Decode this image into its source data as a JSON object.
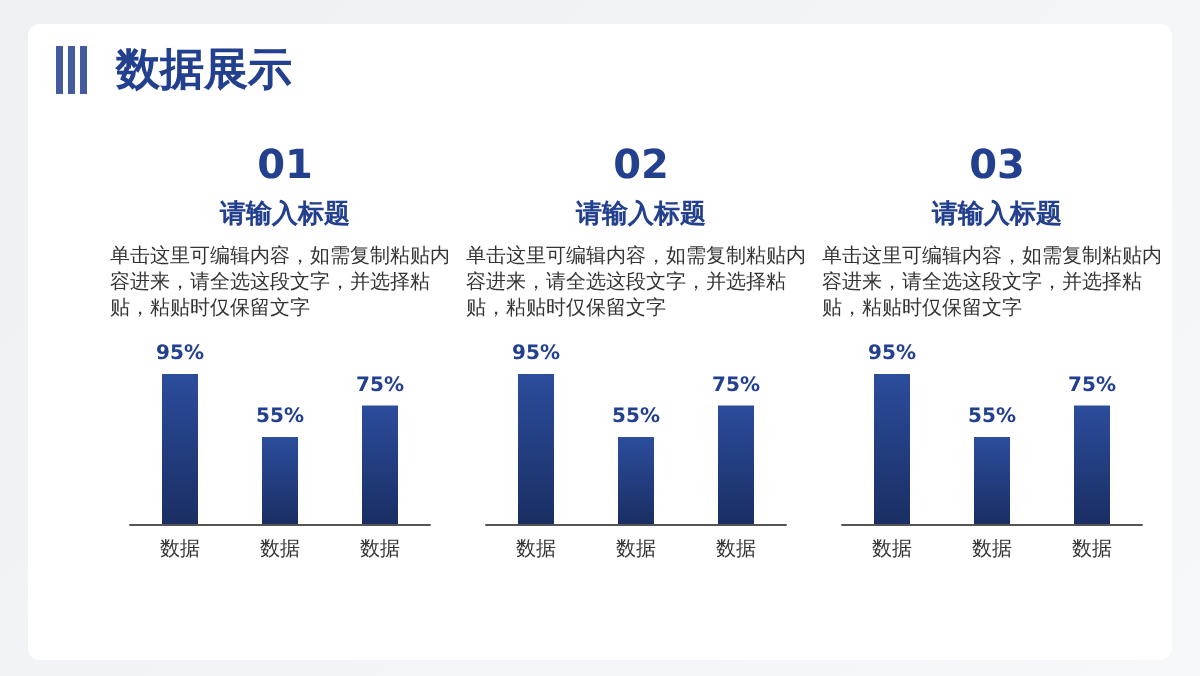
{
  "chart_data": [
    {
      "type": "other",
      "title": "数据展示"
    },
    {
      "type": "bar",
      "title": "01",
      "subtitle": "请输入标题",
      "annotations": [
        "单击这里可编辑内容，如需复制粘贴内容进来，请全选这段文字，并选择粘贴，粘贴时仅保留文字"
      ],
      "categories": [
        "数据",
        "数据",
        "数据"
      ],
      "values": [
        95,
        55,
        75
      ],
      "value_labels": [
        "95%",
        "55%",
        "75%"
      ],
      "color": "#2b4d9c",
      "grid": false
    },
    {
      "type": "bar",
      "title": "02",
      "subtitle": "请输入标题",
      "annotations": [
        "单击这里可编辑内容，如需复制粘贴内容进来，请全选这段文字，并选择粘贴，粘贴时仅保留文字"
      ],
      "categories": [
        "数据",
        "数据",
        "数据"
      ],
      "values": [
        95,
        55,
        75
      ],
      "value_labels": [
        "95%",
        "55%",
        "75%"
      ],
      "color": "#2b4d9c",
      "grid": false
    },
    {
      "type": "bar",
      "title": "03",
      "subtitle": "请输入标题",
      "annotations": [
        "单击这里可编辑内容，如需复制粘贴内容进来，请全选这段文字，并选择粘贴，粘贴时仅保留文字"
      ],
      "categories": [
        "数据",
        "数据",
        "数据"
      ],
      "values": [
        95,
        55,
        75
      ],
      "value_labels": [
        "95%",
        "55%",
        "75%"
      ],
      "color": "#2b4d9c",
      "grid": false
    }
  ]
}
